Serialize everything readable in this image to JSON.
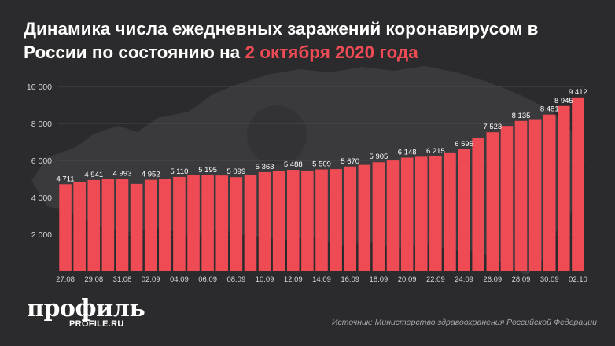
{
  "header": {
    "title_main": "Динамика числа ежедневных заражений коронавирусом в России по состоянию на",
    "title_accent": "2 октября 2020 года"
  },
  "footer": {
    "logo_text": "профиль",
    "logo_domain": "PROFILE.RU",
    "source": "Источник: Министерство здравоохранения Российской Федерации"
  },
  "colors": {
    "background": "#2b2b2d",
    "bar": "#ef4b55",
    "accent": "#ef4b55",
    "text": "#ffffff",
    "muted": "#a7a7aa"
  },
  "chart_data": {
    "type": "bar",
    "title": "Динамика числа ежедневных заражений коронавирусом в России по состоянию на 2 октября 2020 года",
    "xlabel": "",
    "ylabel": "",
    "ylim": [
      0,
      10000
    ],
    "yticks": [
      2000,
      4000,
      6000,
      8000,
      10000
    ],
    "ytick_labels": [
      "2 000",
      "4 000",
      "6 000",
      "8 000",
      "10 000"
    ],
    "grid": true,
    "legend": "none",
    "categories": [
      "27.08",
      "28.08",
      "29.08",
      "30.08",
      "31.08",
      "01.09",
      "02.09",
      "03.09",
      "04.09",
      "05.09",
      "06.09",
      "07.09",
      "08.09",
      "09.09",
      "10.09",
      "11.09",
      "12.09",
      "13.09",
      "14.09",
      "15.09",
      "16.09",
      "17.09",
      "18.09",
      "19.09",
      "20.09",
      "21.09",
      "22.09",
      "23.09",
      "24.09",
      "25.09",
      "26.09",
      "27.09",
      "28.09",
      "29.09",
      "30.09",
      "01.10",
      "02.10"
    ],
    "x_tick_labels": [
      "27.08",
      "",
      "29.08",
      "",
      "31.08",
      "",
      "02.09",
      "",
      "04.09",
      "",
      "06.09",
      "",
      "08.09",
      "",
      "10.09",
      "",
      "12.09",
      "",
      "14.09",
      "",
      "16.09",
      "",
      "18.09",
      "",
      "20.09",
      "",
      "22.09",
      "",
      "24.09",
      "",
      "26.09",
      "",
      "28.09",
      "",
      "30.09",
      "",
      "02.10"
    ],
    "values": [
      4711,
      4829,
      4941,
      4980,
      4993,
      4729,
      4952,
      5010,
      5110,
      5205,
      5195,
      5185,
      5099,
      5218,
      5363,
      5413,
      5488,
      5449,
      5509,
      5529,
      5670,
      5762,
      5905,
      5995,
      6148,
      6196,
      6215,
      6431,
      6595,
      7212,
      7523,
      7867,
      8135,
      8232,
      8481,
      8945,
      9412
    ],
    "data_labels": [
      "4 711",
      "",
      "4 941",
      "",
      "4 993",
      "",
      "4 952",
      "",
      "5 110",
      "",
      "5 195",
      "",
      "5 099",
      "",
      "5 363",
      "",
      "5 488",
      "",
      "5 509",
      "",
      "5 670",
      "",
      "5 905",
      "",
      "6 148",
      "",
      "6 215",
      "",
      "6 595",
      "",
      "7 523",
      "",
      "8 135",
      "",
      "8 481",
      "8 945",
      "9 412"
    ]
  }
}
